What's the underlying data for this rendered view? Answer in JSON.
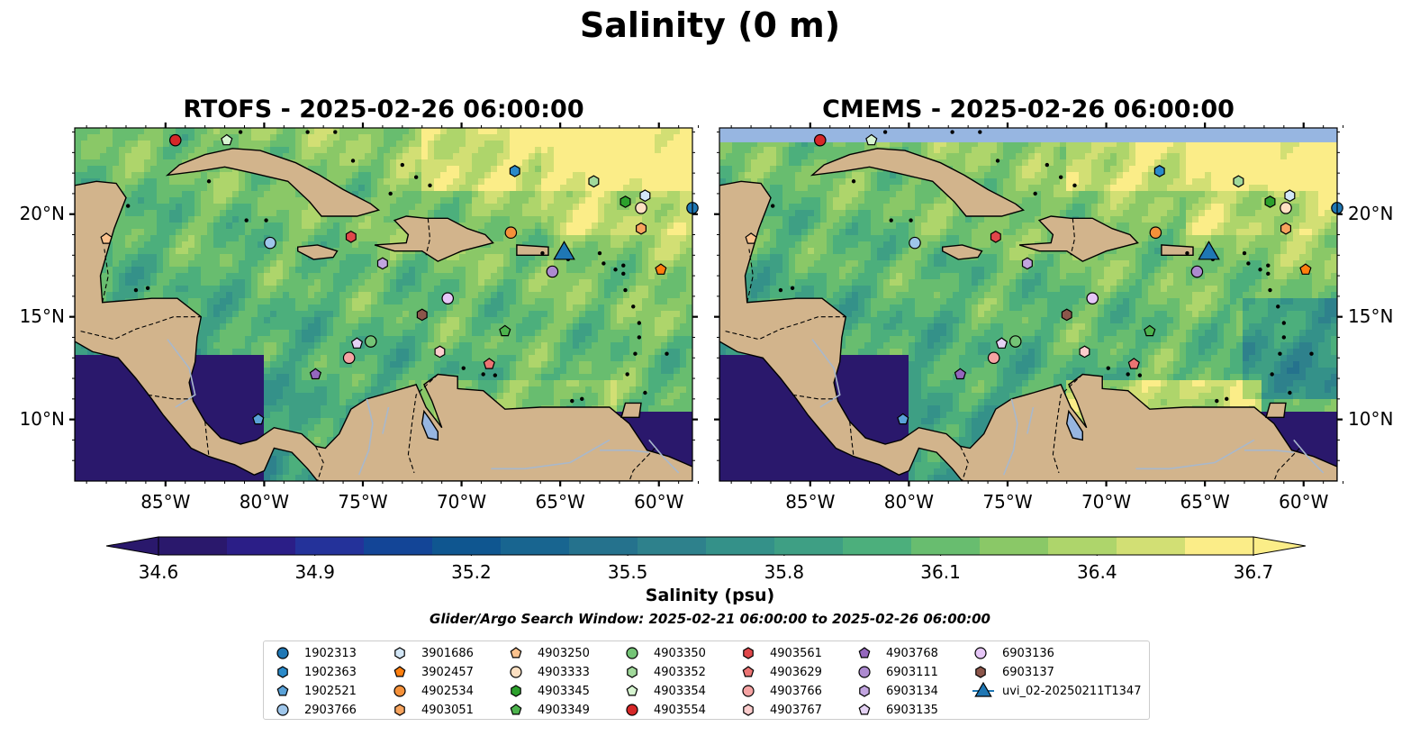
{
  "figure": {
    "title": "Salinity (0 m)",
    "panels": [
      {
        "id": "rtofs",
        "title": "RTOFS - 2025-02-26 06:00:00"
      },
      {
        "id": "cmems",
        "title": "CMEMS - 2025-02-26 06:00:00"
      }
    ],
    "lon_ticks": [
      "85°W",
      "80°W",
      "75°W",
      "70°W",
      "65°W",
      "60°W"
    ],
    "lat_ticks": [
      "20°N",
      "15°N",
      "10°N"
    ],
    "map_extent": {
      "lon": [
        -89.6,
        -58.3
      ],
      "lat": [
        7.0,
        24.2
      ]
    },
    "colorbar": {
      "label": "Salinity (psu)",
      "ticks": [
        "34.6",
        "34.9",
        "35.2",
        "35.5",
        "35.8",
        "36.1",
        "36.4",
        "36.7"
      ],
      "range": [
        34.6,
        36.7
      ],
      "colormap": "haline",
      "colors": [
        "#2a186c",
        "#2b1e87",
        "#24329a",
        "#134597",
        "#0f5690",
        "#186590",
        "#25728d",
        "#2e818c",
        "#349189",
        "#3e9f84",
        "#4caf7c",
        "#68bd6f",
        "#8ac867",
        "#aed56b",
        "#d2df74",
        "#fbed88"
      ]
    },
    "search_window": "Glider/Argo Search Window: 2025-02-21 06:00:00 to 2025-02-26 06:00:00",
    "colors": {
      "land": "#d2b48c",
      "lake": "#97b6e1",
      "river": "#a8b8cc",
      "deep_fresh": "#2a186c",
      "missing": "#97b6e1"
    }
  },
  "floats": [
    {
      "id": "1902313",
      "marker": "circle",
      "color": "#1f77b4",
      "lon": -58.3,
      "lat": 20.3
    },
    {
      "id": "1902363",
      "marker": "hexagon",
      "color": "#2a8ac9",
      "lon": -67.3,
      "lat": 22.1
    },
    {
      "id": "1902521",
      "marker": "pentagon",
      "color": "#5aa2d8",
      "lon": -80.3,
      "lat": 10.0
    },
    {
      "id": "2903766",
      "marker": "circle",
      "color": "#9fc6ea",
      "lon": -79.7,
      "lat": 18.6
    },
    {
      "id": "3901686",
      "marker": "hexagon",
      "color": "#d3e7f7",
      "lon": -60.7,
      "lat": 20.9
    },
    {
      "id": "3902457",
      "marker": "pentagon",
      "color": "#ff7f0e",
      "lon": -59.9,
      "lat": 17.3
    },
    {
      "id": "4902534",
      "marker": "circle",
      "color": "#f5913a",
      "lon": -67.5,
      "lat": 19.1
    },
    {
      "id": "4903051",
      "marker": "hexagon",
      "color": "#f7a45e",
      "lon": -60.9,
      "lat": 19.3
    },
    {
      "id": "4903250",
      "marker": "pentagon",
      "color": "#fbc28e",
      "lon": -88.0,
      "lat": 18.8
    },
    {
      "id": "4903333",
      "marker": "circle",
      "color": "#fde0c2",
      "lon": -60.9,
      "lat": 20.3
    },
    {
      "id": "4903345",
      "marker": "hexagon",
      "color": "#2ca02c",
      "lon": -61.7,
      "lat": 20.6
    },
    {
      "id": "4903349",
      "marker": "pentagon",
      "color": "#4db34d",
      "lon": -67.8,
      "lat": 14.3
    },
    {
      "id": "4903350",
      "marker": "circle",
      "color": "#74c476",
      "lon": -74.6,
      "lat": 13.8
    },
    {
      "id": "4903352",
      "marker": "hexagon",
      "color": "#a1d99b",
      "lon": -63.3,
      "lat": 21.6
    },
    {
      "id": "4903354",
      "marker": "pentagon",
      "color": "#d7f5d1",
      "lon": -81.9,
      "lat": 23.6
    },
    {
      "id": "4903554",
      "marker": "circle",
      "color": "#d62728",
      "lon": -84.5,
      "lat": 23.6
    },
    {
      "id": "4903561",
      "marker": "hexagon",
      "color": "#e0474a",
      "lon": -75.6,
      "lat": 18.9
    },
    {
      "id": "4903629",
      "marker": "pentagon",
      "color": "#ec7473",
      "lon": -68.6,
      "lat": 12.7
    },
    {
      "id": "4903766",
      "marker": "circle",
      "color": "#f5a3a3",
      "lon": -75.7,
      "lat": 13.0
    },
    {
      "id": "4903767",
      "marker": "hexagon",
      "color": "#fccdcd",
      "lon": -71.1,
      "lat": 13.3
    },
    {
      "id": "4903768",
      "marker": "pentagon",
      "color": "#9467bd",
      "lon": -77.4,
      "lat": 12.2
    },
    {
      "id": "6903111",
      "marker": "circle",
      "color": "#ad8ad0",
      "lon": -65.4,
      "lat": 17.2
    },
    {
      "id": "6903134",
      "marker": "hexagon",
      "color": "#c2a5e0",
      "lon": -74.0,
      "lat": 17.6
    },
    {
      "id": "6903135",
      "marker": "pentagon",
      "color": "#e4d2f4",
      "lon": -75.3,
      "lat": 13.7
    },
    {
      "id": "6903136",
      "marker": "circle",
      "color": "#e6c6f7",
      "lon": -70.7,
      "lat": 15.9
    },
    {
      "id": "6903137",
      "marker": "hexagon",
      "color": "#8c564b",
      "lon": -72.0,
      "lat": 15.1
    }
  ],
  "glider": {
    "id": "uvi_02-20250211T1347",
    "marker": "triangle",
    "color": "#1f77b4",
    "lon": -64.8,
    "lat": 18.2
  }
}
